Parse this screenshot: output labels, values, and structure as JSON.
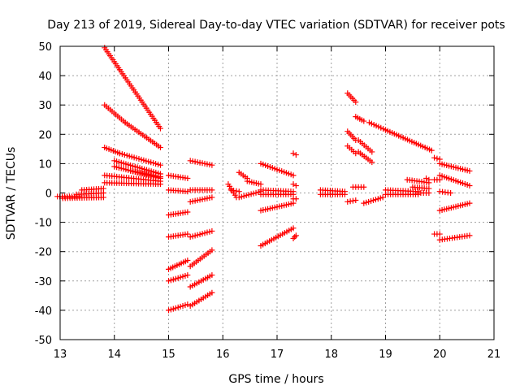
{
  "chart_data": {
    "type": "scatter",
    "title": "Day 213 of 2019, Sidereal Day-to-day VTEC variation (SDTVAR) for receiver pots",
    "xlabel": "GPS time / hours",
    "ylabel": "SDTVAR / TECUs",
    "xlim": [
      13,
      21
    ],
    "ylim": [
      -50,
      50
    ],
    "xticks": [
      13,
      14,
      15,
      16,
      17,
      18,
      19,
      20,
      21
    ],
    "yticks": [
      50,
      40,
      30,
      20,
      10,
      0,
      -10,
      -20,
      -30,
      -40,
      -50
    ],
    "grid": true,
    "marker": "plus",
    "color": "#ff0000",
    "segments": [
      {
        "x0": 12.95,
        "y0": -1.2,
        "x1": 13.35,
        "y1": -1.2
      },
      {
        "x0": 13.3,
        "y0": -0.5,
        "x1": 13.8,
        "y1": 0.0
      },
      {
        "x0": 13.05,
        "y0": -1.8,
        "x1": 13.8,
        "y1": -1.5
      },
      {
        "x0": 13.4,
        "y0": 1.0,
        "x1": 13.8,
        "y1": 1.5
      },
      {
        "x0": 13.82,
        "y0": 49.5,
        "x1": 14.1,
        "y1": 42.0
      },
      {
        "x0": 14.1,
        "y0": 42.0,
        "x1": 14.85,
        "y1": 22.0
      },
      {
        "x0": 13.82,
        "y0": 30.0,
        "x1": 14.2,
        "y1": 24.0
      },
      {
        "x0": 14.2,
        "y0": 24.0,
        "x1": 14.85,
        "y1": 15.5
      },
      {
        "x0": 13.82,
        "y0": 15.5,
        "x1": 14.1,
        "y1": 13.5
      },
      {
        "x0": 14.1,
        "y0": 13.5,
        "x1": 14.85,
        "y1": 9.5
      },
      {
        "x0": 14.0,
        "y0": 11.0,
        "x1": 14.85,
        "y1": 6.5
      },
      {
        "x0": 14.0,
        "y0": 9.0,
        "x1": 14.85,
        "y1": 5.0
      },
      {
        "x0": 13.82,
        "y0": 6.0,
        "x1": 14.85,
        "y1": 4.0
      },
      {
        "x0": 13.82,
        "y0": 3.5,
        "x1": 14.85,
        "y1": 3.0
      },
      {
        "x0": 14.3,
        "y0": 7.5,
        "x1": 14.85,
        "y1": 5.5
      },
      {
        "x0": 15.0,
        "y0": 6.0,
        "x1": 15.35,
        "y1": 5.0
      },
      {
        "x0": 15.0,
        "y0": 1.0,
        "x1": 15.35,
        "y1": 0.5
      },
      {
        "x0": 15.0,
        "y0": -7.5,
        "x1": 15.35,
        "y1": -6.5
      },
      {
        "x0": 15.0,
        "y0": -15.0,
        "x1": 15.35,
        "y1": -14.0
      },
      {
        "x0": 15.0,
        "y0": -26.0,
        "x1": 15.35,
        "y1": -23.0
      },
      {
        "x0": 15.0,
        "y0": -30.0,
        "x1": 15.35,
        "y1": -28.0
      },
      {
        "x0": 15.0,
        "y0": -40.0,
        "x1": 15.35,
        "y1": -38.0
      },
      {
        "x0": 15.4,
        "y0": 11.0,
        "x1": 15.8,
        "y1": 9.5
      },
      {
        "x0": 15.4,
        "y0": 1.0,
        "x1": 15.8,
        "y1": 1.0
      },
      {
        "x0": 15.4,
        "y0": -3.0,
        "x1": 15.8,
        "y1": -1.5
      },
      {
        "x0": 15.4,
        "y0": -15.0,
        "x1": 15.8,
        "y1": -13.0
      },
      {
        "x0": 15.4,
        "y0": -25.0,
        "x1": 15.8,
        "y1": -19.5
      },
      {
        "x0": 15.4,
        "y0": -32.0,
        "x1": 15.8,
        "y1": -28.0
      },
      {
        "x0": 15.4,
        "y0": -38.5,
        "x1": 15.8,
        "y1": -34.0
      },
      {
        "x0": 16.1,
        "y0": 3.0,
        "x1": 16.25,
        "y1": -1.5
      },
      {
        "x0": 16.15,
        "y0": 1.0,
        "x1": 16.3,
        "y1": 0.5
      },
      {
        "x0": 16.3,
        "y0": 7.0,
        "x1": 16.45,
        "y1": 5.0
      },
      {
        "x0": 16.45,
        "y0": 4.0,
        "x1": 16.7,
        "y1": 3.0
      },
      {
        "x0": 16.3,
        "y0": -1.5,
        "x1": 16.7,
        "y1": 0.5
      },
      {
        "x0": 16.7,
        "y0": 10.0,
        "x1": 17.3,
        "y1": 6.0
      },
      {
        "x0": 16.7,
        "y0": 1.0,
        "x1": 17.3,
        "y1": 0.5
      },
      {
        "x0": 16.7,
        "y0": -0.5,
        "x1": 17.3,
        "y1": -0.5
      },
      {
        "x0": 16.7,
        "y0": -6.0,
        "x1": 17.3,
        "y1": -3.5
      },
      {
        "x0": 16.7,
        "y0": -18.0,
        "x1": 17.3,
        "y1": -12.0
      },
      {
        "x0": 17.3,
        "y0": 13.5,
        "x1": 17.35,
        "y1": 13.0
      },
      {
        "x0": 17.3,
        "y0": -15.5,
        "x1": 17.35,
        "y1": -14.5
      },
      {
        "x0": 17.3,
        "y0": 3.0,
        "x1": 17.35,
        "y1": 2.5
      },
      {
        "x0": 17.3,
        "y0": -2.0,
        "x1": 17.35,
        "y1": -2.0
      },
      {
        "x0": 17.8,
        "y0": 1.0,
        "x1": 18.25,
        "y1": 0.5
      },
      {
        "x0": 17.8,
        "y0": -0.5,
        "x1": 18.25,
        "y1": -0.5
      },
      {
        "x0": 18.3,
        "y0": 34.0,
        "x1": 18.45,
        "y1": 31.0
      },
      {
        "x0": 18.3,
        "y0": 21.0,
        "x1": 18.45,
        "y1": 18.0
      },
      {
        "x0": 18.3,
        "y0": 16.0,
        "x1": 18.45,
        "y1": 13.5
      },
      {
        "x0": 18.45,
        "y0": 26.0,
        "x1": 18.6,
        "y1": 24.5
      },
      {
        "x0": 18.5,
        "y0": 18.0,
        "x1": 18.75,
        "y1": 14.0
      },
      {
        "x0": 18.5,
        "y0": 14.0,
        "x1": 18.75,
        "y1": 10.5
      },
      {
        "x0": 18.4,
        "y0": 2.0,
        "x1": 18.6,
        "y1": 2.0
      },
      {
        "x0": 18.3,
        "y0": -3.0,
        "x1": 18.45,
        "y1": -2.5
      },
      {
        "x0": 18.6,
        "y0": -3.5,
        "x1": 18.95,
        "y1": -1.5
      },
      {
        "x0": 18.7,
        "y0": 24.0,
        "x1": 19.0,
        "y1": 21.5
      },
      {
        "x0": 19.0,
        "y0": 21.5,
        "x1": 19.85,
        "y1": 14.5
      },
      {
        "x0": 19.0,
        "y0": 1.0,
        "x1": 19.6,
        "y1": 0.5
      },
      {
        "x0": 19.0,
        "y0": -0.5,
        "x1": 19.6,
        "y1": -0.5
      },
      {
        "x0": 19.4,
        "y0": 4.5,
        "x1": 19.8,
        "y1": 3.5
      },
      {
        "x0": 19.5,
        "y0": 2.0,
        "x1": 19.8,
        "y1": 1.5
      },
      {
        "x0": 19.6,
        "y0": 0.0,
        "x1": 19.8,
        "y1": 0.0
      },
      {
        "x0": 19.75,
        "y0": 5.0,
        "x1": 19.8,
        "y1": 4.5
      },
      {
        "x0": 19.9,
        "y0": 12.0,
        "x1": 20.0,
        "y1": 11.5
      },
      {
        "x0": 19.9,
        "y0": 4.5,
        "x1": 20.0,
        "y1": 4.5
      },
      {
        "x0": 19.9,
        "y0": -14.0,
        "x1": 20.0,
        "y1": -14.0
      },
      {
        "x0": 20.0,
        "y0": 10.0,
        "x1": 20.55,
        "y1": 7.5
      },
      {
        "x0": 20.0,
        "y0": 6.0,
        "x1": 20.55,
        "y1": 2.5
      },
      {
        "x0": 20.0,
        "y0": 0.5,
        "x1": 20.2,
        "y1": 0.0
      },
      {
        "x0": 20.0,
        "y0": -6.0,
        "x1": 20.55,
        "y1": -3.5
      },
      {
        "x0": 20.0,
        "y0": -16.0,
        "x1": 20.55,
        "y1": -14.5
      }
    ]
  }
}
